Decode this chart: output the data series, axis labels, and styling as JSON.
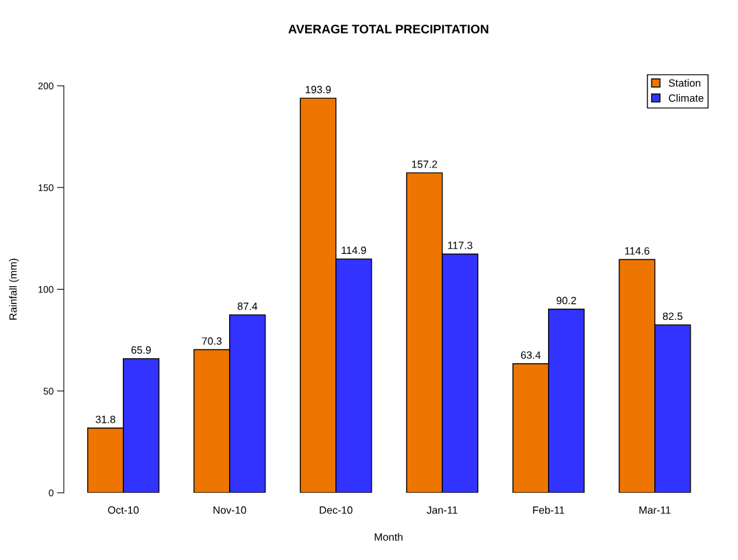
{
  "chart_data": {
    "type": "bar",
    "title": "AVERAGE TOTAL PRECIPITATION",
    "xlabel": "Month",
    "ylabel": "Rainfall (mm)",
    "categories": [
      "Oct-10",
      "Nov-10",
      "Dec-10",
      "Jan-11",
      "Feb-11",
      "Mar-11"
    ],
    "series": [
      {
        "name": "Station",
        "color": "#ee7600",
        "values": [
          31.8,
          70.3,
          193.9,
          157.2,
          63.4,
          114.6
        ]
      },
      {
        "name": "Climate",
        "color": "#3333ff",
        "values": [
          65.9,
          87.4,
          114.9,
          117.3,
          90.2,
          82.5
        ]
      }
    ],
    "ylim": [
      0,
      200
    ],
    "yticks": [
      0,
      50,
      100,
      150,
      200
    ],
    "grid": false,
    "legend": "top right",
    "data_labels": true
  }
}
